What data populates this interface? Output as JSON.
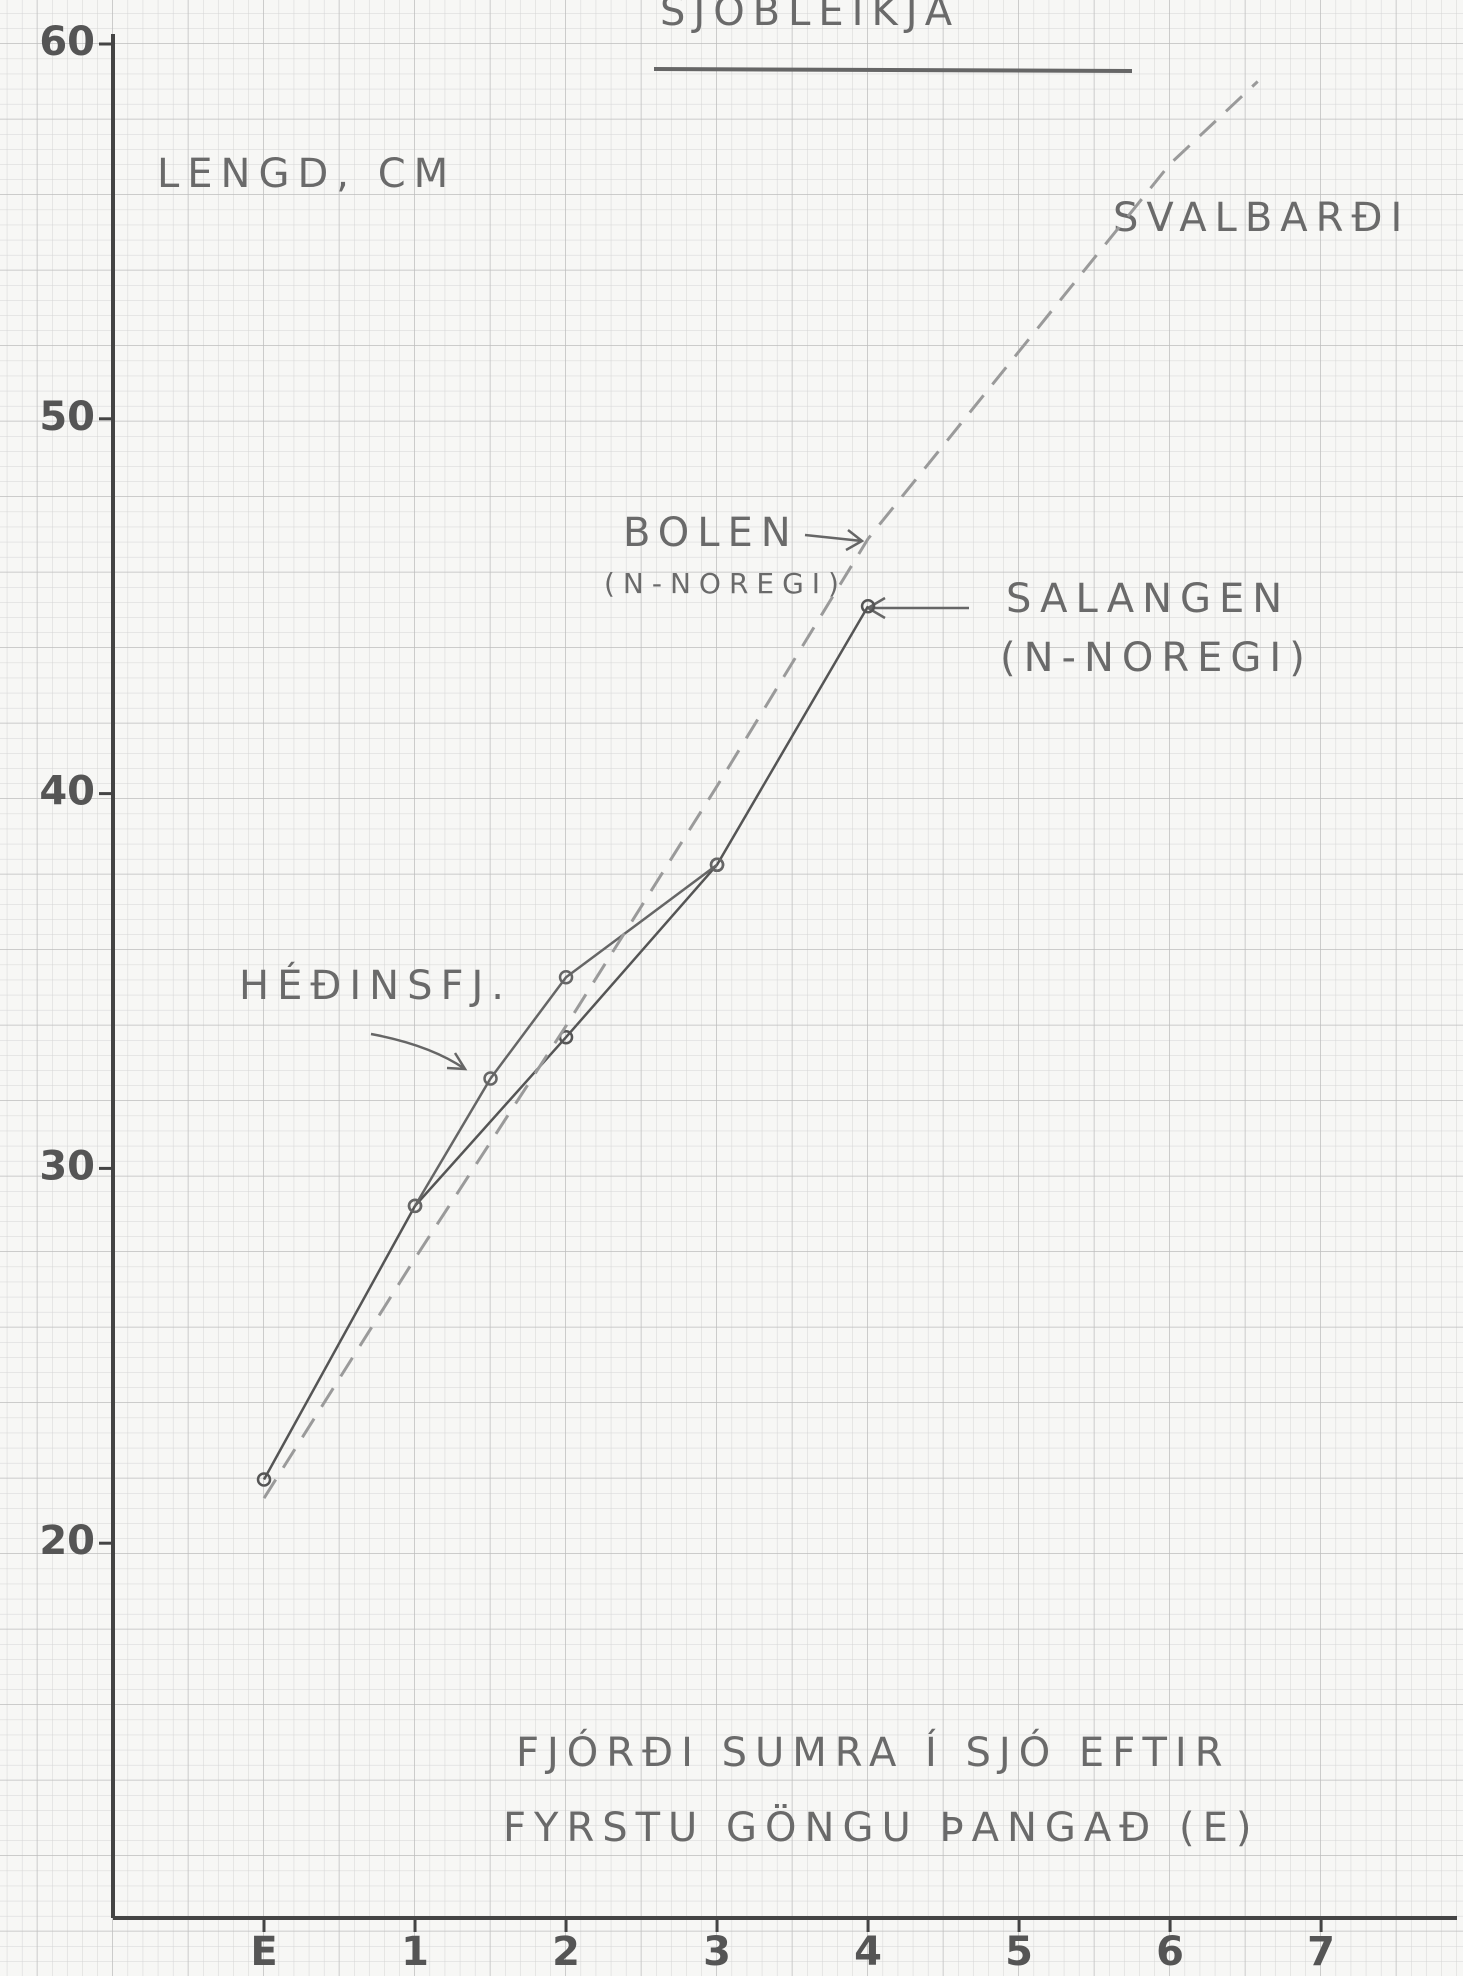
{
  "chart_data": {
    "type": "line",
    "title": "SJÓBLEIKJA",
    "y_label": "LENGD, CM",
    "x_label": [
      "FJÓRÐI SUMRA Í SJÓ EFTIR",
      "FYRSTU GÖNGU ÞANGAÐ (E)"
    ],
    "annotations": [
      "SVALBARÐI",
      "BOLEN",
      "(N-NOREGI)",
      "SALANGEN",
      "(N-NOREGI)",
      "HÉÐINSFJ."
    ],
    "xlim": [
      -1,
      7.9
    ],
    "xticks": [
      {
        "value": 0,
        "label": "E"
      },
      1,
      2,
      3,
      4,
      5,
      6,
      7
    ],
    "ylim": [
      10,
      60
    ],
    "yticks": [
      20,
      30,
      40,
      50,
      60
    ],
    "grid": true,
    "series": [
      {
        "color": "#555555",
        "style": "solid",
        "x": [
          0,
          1,
          2,
          3,
          4
        ],
        "values": [
          21.7,
          29,
          33.5,
          38.1,
          45
        ]
      },
      {
        "color": "#666666",
        "style": "solid",
        "x": [
          1,
          1.5,
          2,
          3
        ],
        "values": [
          29,
          32.4,
          35.1,
          38.1
        ]
      },
      {
        "color": "#9a9a9a",
        "style": "dashed",
        "x": [
          0,
          1,
          2,
          3,
          4,
          5,
          6,
          6.58
        ],
        "values": [
          21.2,
          27.6,
          33.8,
          40.2,
          46.8,
          51.8,
          56.8,
          59
        ]
      }
    ]
  }
}
